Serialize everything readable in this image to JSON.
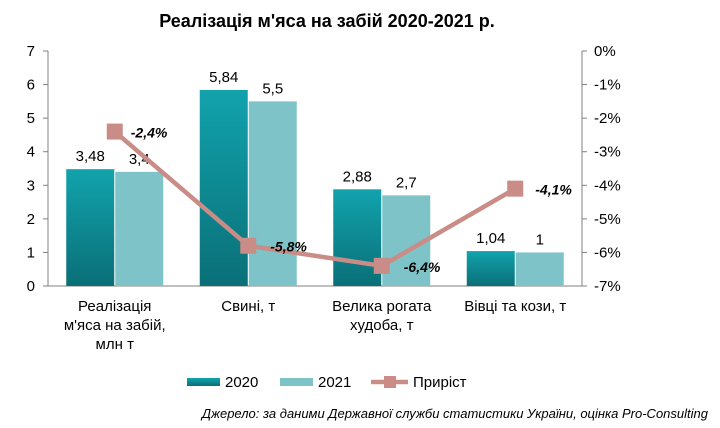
{
  "chart_data": {
    "type": "bar",
    "title": "Реалізація м'яса на забій 2020-2021 р.",
    "categories": [
      [
        "Реалізація",
        "м'яса на забій,",
        "млн т"
      ],
      [
        "Свині, т"
      ],
      [
        "Велика рогата",
        "худоба, т"
      ],
      [
        "Вівці та кози, т"
      ]
    ],
    "series": [
      {
        "name": "2020",
        "values": [
          3.48,
          5.84,
          2.88,
          1.04
        ],
        "labels": [
          "3,48",
          "5,84",
          "2,88",
          "1,04"
        ],
        "color": "#0e8e97"
      },
      {
        "name": "2021",
        "values": [
          3.4,
          5.5,
          2.7,
          1
        ],
        "labels": [
          "3,4",
          "5,5",
          "2,7",
          "1"
        ],
        "color": "#7ec3c8"
      }
    ],
    "line_series": {
      "name": "Приріст",
      "values": [
        -2.4,
        -5.8,
        -6.4,
        -4.1
      ],
      "labels": [
        "-2,4%",
        "-5,8%",
        "-6,4%",
        "-4,1%"
      ],
      "color": "#c98c86"
    },
    "ylim": [
      0,
      7
    ],
    "yticks": [
      "0",
      "1",
      "2",
      "3",
      "4",
      "5",
      "6",
      "7"
    ],
    "y2lim": [
      -7,
      0
    ],
    "y2ticks": [
      "0%",
      "-1%",
      "-2%",
      "-3%",
      "-4%",
      "-5%",
      "-6%",
      "-7%"
    ],
    "grid": false,
    "legend_position": "bottom",
    "source": "Джерело: за даними Державної служби статистики України, оцінка Pro-Consulting"
  }
}
